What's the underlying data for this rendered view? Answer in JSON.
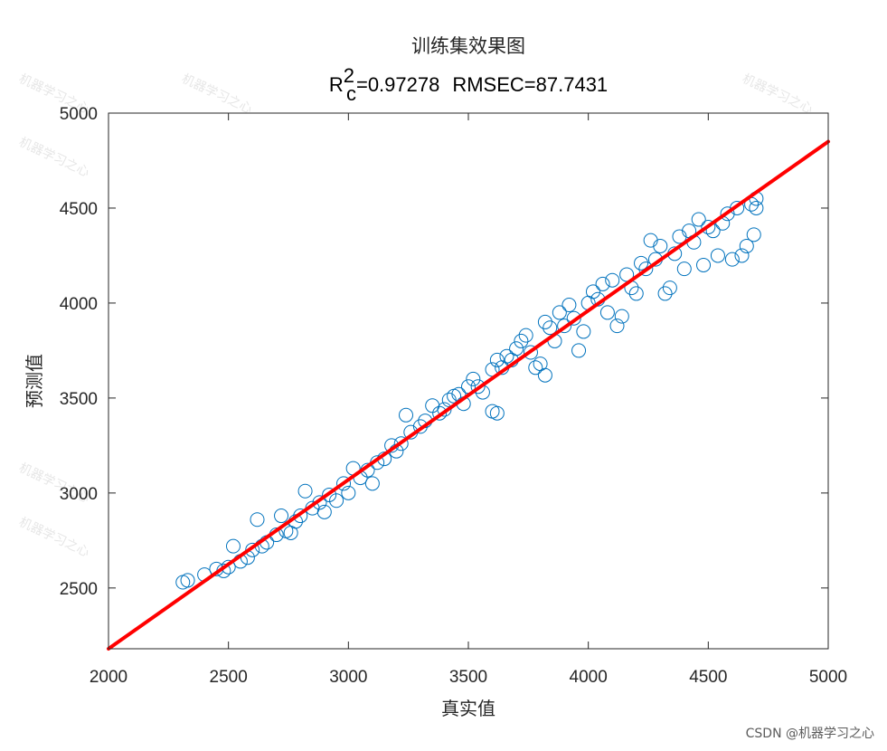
{
  "chart_data": {
    "type": "scatter",
    "title": "训练集效果图",
    "subtitle": {
      "r_base": "R",
      "r_sup": "2",
      "r_sub": "c",
      "r_value": "=0.97278",
      "rmse": "RMSEC=87.7431"
    },
    "xlabel": "真实值",
    "ylabel": "预测值",
    "xlim": [
      2000,
      5000
    ],
    "ylim": [
      2180,
      5000
    ],
    "xticks": [
      2000,
      2500,
      3000,
      3500,
      4000,
      4500,
      5000
    ],
    "yticks": [
      2500,
      3000,
      3500,
      4000,
      4500,
      5000
    ],
    "grid": false,
    "fit_line": {
      "color": "#ff0000",
      "x": [
        2000,
        5000
      ],
      "y": [
        2180,
        4850
      ]
    },
    "series": [
      {
        "marker": "open-circle",
        "color": "#0072bd",
        "points": [
          [
            2310,
            2530
          ],
          [
            2330,
            2540
          ],
          [
            2400,
            2570
          ],
          [
            2450,
            2600
          ],
          [
            2480,
            2590
          ],
          [
            2500,
            2610
          ],
          [
            2520,
            2720
          ],
          [
            2550,
            2640
          ],
          [
            2580,
            2660
          ],
          [
            2600,
            2700
          ],
          [
            2620,
            2860
          ],
          [
            2640,
            2720
          ],
          [
            2660,
            2740
          ],
          [
            2700,
            2780
          ],
          [
            2720,
            2880
          ],
          [
            2740,
            2800
          ],
          [
            2760,
            2790
          ],
          [
            2780,
            2850
          ],
          [
            2800,
            2880
          ],
          [
            2820,
            3010
          ],
          [
            2850,
            2920
          ],
          [
            2880,
            2950
          ],
          [
            2900,
            2900
          ],
          [
            2920,
            2990
          ],
          [
            2950,
            2960
          ],
          [
            2980,
            3050
          ],
          [
            3000,
            3000
          ],
          [
            3020,
            3130
          ],
          [
            3050,
            3080
          ],
          [
            3080,
            3120
          ],
          [
            3100,
            3050
          ],
          [
            3120,
            3160
          ],
          [
            3150,
            3180
          ],
          [
            3180,
            3250
          ],
          [
            3200,
            3220
          ],
          [
            3220,
            3260
          ],
          [
            3240,
            3410
          ],
          [
            3260,
            3320
          ],
          [
            3300,
            3350
          ],
          [
            3320,
            3380
          ],
          [
            3350,
            3460
          ],
          [
            3380,
            3420
          ],
          [
            3400,
            3440
          ],
          [
            3420,
            3490
          ],
          [
            3440,
            3510
          ],
          [
            3460,
            3520
          ],
          [
            3480,
            3470
          ],
          [
            3500,
            3560
          ],
          [
            3520,
            3600
          ],
          [
            3540,
            3560
          ],
          [
            3560,
            3530
          ],
          [
            3600,
            3430
          ],
          [
            3620,
            3420
          ],
          [
            3600,
            3650
          ],
          [
            3620,
            3700
          ],
          [
            3640,
            3660
          ],
          [
            3660,
            3720
          ],
          [
            3680,
            3700
          ],
          [
            3700,
            3760
          ],
          [
            3720,
            3800
          ],
          [
            3740,
            3830
          ],
          [
            3760,
            3740
          ],
          [
            3780,
            3660
          ],
          [
            3800,
            3680
          ],
          [
            3820,
            3620
          ],
          [
            3820,
            3900
          ],
          [
            3840,
            3870
          ],
          [
            3860,
            3800
          ],
          [
            3880,
            3950
          ],
          [
            3900,
            3880
          ],
          [
            3920,
            3990
          ],
          [
            3940,
            3920
          ],
          [
            3960,
            3750
          ],
          [
            3980,
            3850
          ],
          [
            4000,
            4000
          ],
          [
            4020,
            4060
          ],
          [
            4040,
            4020
          ],
          [
            4060,
            4100
          ],
          [
            4080,
            3950
          ],
          [
            4100,
            4120
          ],
          [
            4120,
            3880
          ],
          [
            4140,
            3930
          ],
          [
            4160,
            4150
          ],
          [
            4180,
            4080
          ],
          [
            4200,
            4050
          ],
          [
            4220,
            4210
          ],
          [
            4240,
            4180
          ],
          [
            4260,
            4330
          ],
          [
            4280,
            4230
          ],
          [
            4300,
            4300
          ],
          [
            4320,
            4050
          ],
          [
            4340,
            4080
          ],
          [
            4360,
            4260
          ],
          [
            4380,
            4350
          ],
          [
            4400,
            4180
          ],
          [
            4420,
            4380
          ],
          [
            4440,
            4320
          ],
          [
            4460,
            4440
          ],
          [
            4480,
            4200
          ],
          [
            4500,
            4400
          ],
          [
            4520,
            4380
          ],
          [
            4540,
            4250
          ],
          [
            4560,
            4420
          ],
          [
            4580,
            4470
          ],
          [
            4600,
            4230
          ],
          [
            4620,
            4500
          ],
          [
            4640,
            4250
          ],
          [
            4660,
            4300
          ],
          [
            4680,
            4520
          ],
          [
            4700,
            4550
          ],
          [
            4700,
            4500
          ],
          [
            4690,
            4360
          ]
        ]
      }
    ],
    "watermark_text": "机器学习之心",
    "watermark_sub": "机器学习之心",
    "credit": "CSDN @机器学习之心"
  }
}
